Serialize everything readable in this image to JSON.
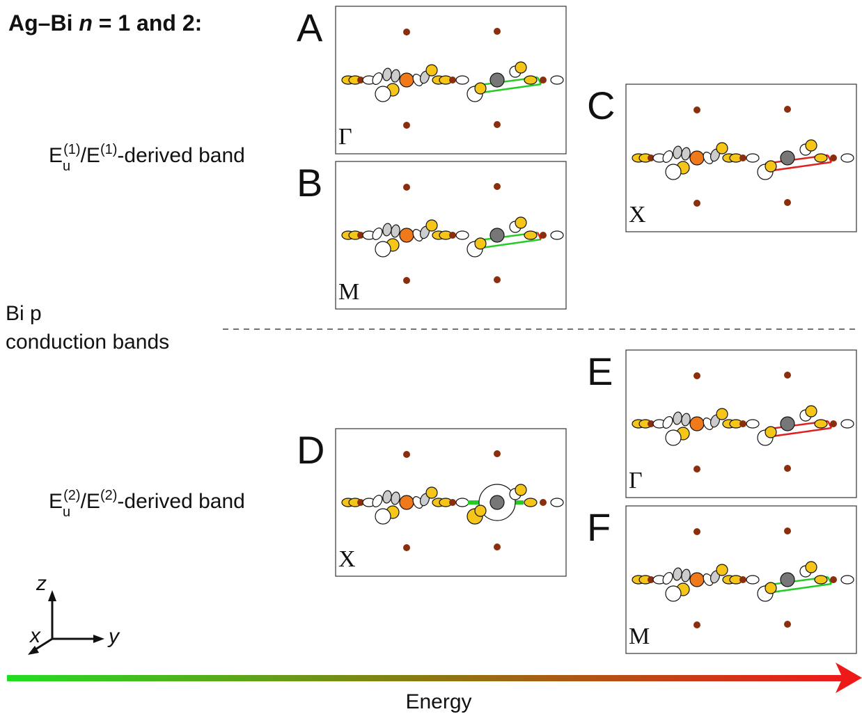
{
  "title": {
    "prefix": "Ag–Bi",
    "italic": "n",
    "suffix": "= 1 and 2:"
  },
  "band_labels": [
    {
      "base": "E",
      "sub": "u",
      "sup1": "(1)",
      "mid": "/E",
      "sup2": "(1)",
      "tail": "-derived band"
    },
    {
      "base": "E",
      "sub": "u",
      "sup1": "(2)",
      "mid": "/E",
      "sup2": "(2)",
      "tail": "-derived band"
    }
  ],
  "side_label": {
    "line1": "Bi p",
    "line2": "conduction bands"
  },
  "panels": [
    {
      "letter": "A",
      "kpoint": "Γ"
    },
    {
      "letter": "B",
      "kpoint": "M"
    },
    {
      "letter": "C",
      "kpoint": "X"
    },
    {
      "letter": "D",
      "kpoint": "X"
    },
    {
      "letter": "E",
      "kpoint": "Γ"
    },
    {
      "letter": "F",
      "kpoint": "M"
    }
  ],
  "axes": {
    "z": "z",
    "x": "x",
    "y": "y"
  },
  "energy_label": "Energy"
}
